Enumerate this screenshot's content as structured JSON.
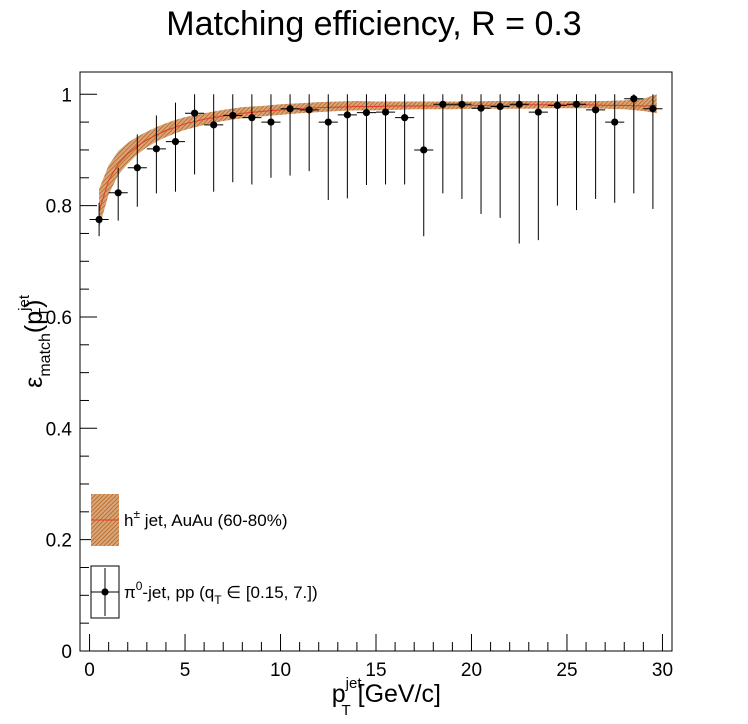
{
  "chart_data": {
    "type": "scatter",
    "title": "Matching efficiency, R = 0.3",
    "xlabel": {
      "base": "p",
      "sup": "jet",
      "sub": "T",
      "rest": " [GeV/c]"
    },
    "ylabel": {
      "base": "ε",
      "sub": "match",
      "open": "(p",
      "sup": "jet",
      "sub2": "T",
      "close": ")"
    },
    "xlim": [
      -0.5,
      30.5
    ],
    "ylim": [
      0,
      1.04
    ],
    "x_ticks": [
      0,
      5,
      10,
      15,
      20,
      25,
      30
    ],
    "x_tick_labels": [
      "0",
      "5",
      "10",
      "15",
      "20",
      "25",
      "30"
    ],
    "y_ticks": [
      0,
      0.2,
      0.4,
      0.6,
      0.8,
      1
    ],
    "y_tick_labels": [
      "0",
      "0.2",
      "0.4",
      "0.6",
      "0.8",
      "1"
    ],
    "grid": false,
    "legend_position": "bottom-left",
    "legend": [
      {
        "kind": "band",
        "label_pre": "h",
        "label_sup": "±",
        "label_post": " jet, AuAu (60-80%)"
      },
      {
        "kind": "points",
        "label_pre": "π",
        "label_sup": "0",
        "label_mid": "-jet, pp (q",
        "label_sub": "T",
        "label_post": " ∈ [0.15, 7.])"
      }
    ],
    "series": [
      {
        "kind": "band",
        "color": "#b5651d",
        "line_color": "#e8392b",
        "x": [
          0.5,
          1.0,
          1.5,
          2.0,
          2.5,
          3.0,
          3.5,
          4.0,
          4.5,
          5.0,
          6.0,
          7.0,
          8.0,
          9.0,
          10.0,
          11.0,
          12.0,
          13.0,
          14.0,
          15.0,
          16.0,
          17.0,
          18.0,
          19.0,
          20.0,
          21.0,
          22.0,
          23.0,
          24.0,
          25.0,
          26.0,
          27.0,
          28.0,
          29.0,
          29.7
        ],
        "lower": [
          0.76,
          0.82,
          0.855,
          0.875,
          0.892,
          0.905,
          0.915,
          0.923,
          0.93,
          0.936,
          0.945,
          0.952,
          0.957,
          0.96,
          0.963,
          0.966,
          0.968,
          0.97,
          0.971,
          0.971,
          0.972,
          0.973,
          0.973,
          0.973,
          0.974,
          0.974,
          0.974,
          0.974,
          0.975,
          0.975,
          0.975,
          0.974,
          0.973,
          0.97,
          0.966
        ],
        "center": [
          0.79,
          0.845,
          0.875,
          0.893,
          0.907,
          0.918,
          0.927,
          0.935,
          0.941,
          0.947,
          0.955,
          0.961,
          0.966,
          0.969,
          0.972,
          0.974,
          0.976,
          0.977,
          0.978,
          0.978,
          0.979,
          0.979,
          0.979,
          0.98,
          0.98,
          0.98,
          0.98,
          0.981,
          0.981,
          0.981,
          0.981,
          0.98,
          0.98,
          0.979,
          0.98
        ],
        "upper": [
          0.83,
          0.872,
          0.898,
          0.913,
          0.924,
          0.933,
          0.941,
          0.948,
          0.954,
          0.959,
          0.966,
          0.972,
          0.977,
          0.979,
          0.982,
          0.984,
          0.986,
          0.987,
          0.988,
          0.987,
          0.987,
          0.987,
          0.987,
          0.987,
          0.987,
          0.988,
          0.988,
          0.988,
          0.988,
          0.988,
          0.988,
          0.988,
          0.989,
          0.992,
          1.0
        ]
      },
      {
        "kind": "points",
        "color": "#000000",
        "x": [
          0.5,
          1.5,
          2.5,
          3.5,
          4.5,
          5.5,
          6.5,
          7.5,
          8.5,
          9.5,
          10.5,
          11.5,
          12.5,
          13.5,
          14.5,
          15.5,
          16.5,
          17.5,
          18.5,
          19.5,
          20.5,
          21.5,
          22.5,
          23.5,
          24.5,
          25.5,
          26.5,
          27.5,
          28.5,
          29.5
        ],
        "y": [
          0.775,
          0.823,
          0.868,
          0.902,
          0.915,
          0.966,
          0.945,
          0.962,
          0.958,
          0.95,
          0.974,
          0.972,
          0.95,
          0.963,
          0.967,
          0.968,
          0.958,
          0.9,
          0.982,
          0.982,
          0.975,
          0.978,
          0.982,
          0.968,
          0.98,
          0.982,
          0.972,
          0.95,
          0.992,
          0.974
        ],
        "yerr_low": [
          0.03,
          0.05,
          0.07,
          0.08,
          0.09,
          0.11,
          0.12,
          0.12,
          0.12,
          0.1,
          0.12,
          0.11,
          0.14,
          0.15,
          0.13,
          0.13,
          0.12,
          0.155,
          0.16,
          0.17,
          0.19,
          0.2,
          0.25,
          0.23,
          0.18,
          0.19,
          0.16,
          0.145,
          0.17,
          0.18
        ],
        "yerr_high": [
          0.03,
          0.045,
          0.06,
          0.06,
          0.07,
          0.034,
          0.055,
          0.038,
          0.042,
          0.05,
          0.026,
          0.028,
          0.05,
          0.037,
          0.033,
          0.032,
          0.042,
          0.1,
          0.018,
          0.018,
          0.025,
          0.022,
          0.018,
          0.032,
          0.02,
          0.018,
          0.028,
          0.05,
          0.008,
          0.026
        ],
        "xerr": 0.5
      }
    ]
  }
}
